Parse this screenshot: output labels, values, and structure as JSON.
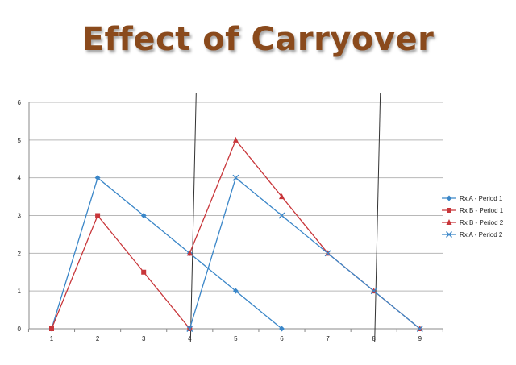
{
  "slide": {
    "title": "Effect of Carryover",
    "title_color": "#8a4a1c"
  },
  "chart_data": {
    "type": "line",
    "title": "Effect of Carryover",
    "xlabel": "",
    "ylabel": "",
    "categories": [
      1,
      2,
      3,
      4,
      5,
      6,
      7,
      8,
      9
    ],
    "ylim": [
      0,
      6
    ],
    "yticks": [
      0,
      1,
      2,
      3,
      4,
      5,
      6
    ],
    "grid": true,
    "legend_position": "right",
    "vertical_markers": [
      4,
      8
    ],
    "series": [
      {
        "name": "Rx A - Period 1",
        "x": [
          1,
          2,
          3,
          4,
          5,
          6
        ],
        "values": [
          0,
          4,
          3,
          2,
          1,
          0
        ],
        "color": "#3a86c8",
        "marker": "diamond"
      },
      {
        "name": "Rx B - Period 1",
        "x": [
          1,
          2,
          3,
          4
        ],
        "values": [
          0,
          3,
          1.5,
          0
        ],
        "color": "#c8363a",
        "marker": "square"
      },
      {
        "name": "Rx B - Period 2",
        "x": [
          4,
          5,
          6,
          7,
          8,
          9
        ],
        "values": [
          2,
          5,
          3.5,
          2,
          1,
          0
        ],
        "color": "#c8363a",
        "marker": "triangle"
      },
      {
        "name": "Rx A - Period 2",
        "x": [
          4,
          5,
          6,
          7,
          8,
          9
        ],
        "values": [
          0,
          4,
          3,
          2,
          1,
          0
        ],
        "color": "#3a86c8",
        "marker": "x"
      }
    ]
  }
}
